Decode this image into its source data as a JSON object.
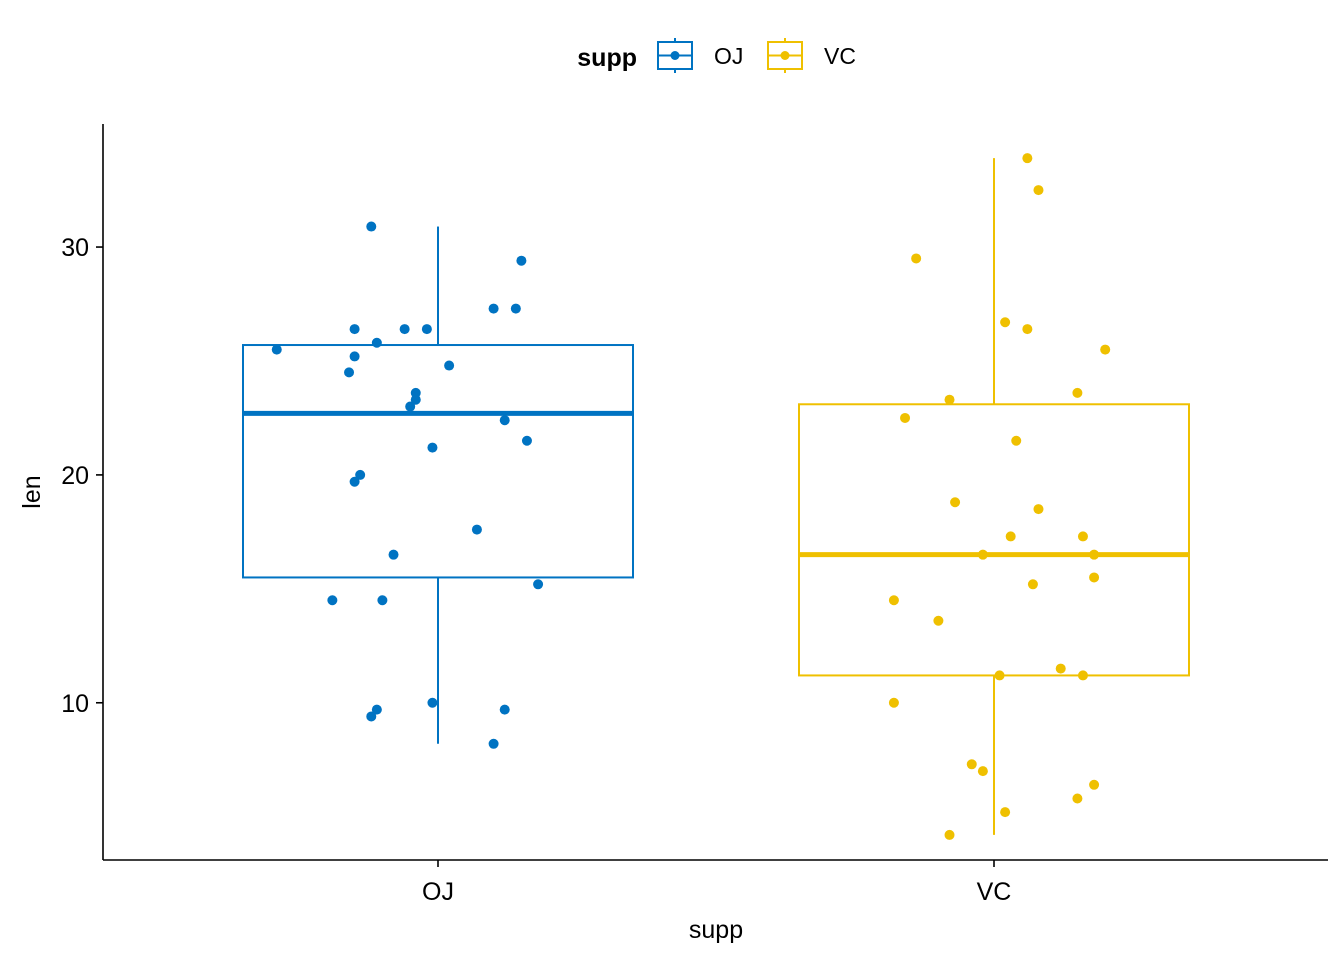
{
  "chart_data": {
    "type": "box",
    "title": "",
    "xlabel": "supp",
    "ylabel": "len",
    "categories": [
      "OJ",
      "VC"
    ],
    "yticks": [
      10,
      20,
      30
    ],
    "ylim": [
      3.1,
      35.4
    ],
    "grid": false,
    "legend": {
      "title": "supp",
      "position": "top",
      "entries": [
        "OJ",
        "VC"
      ]
    },
    "colors": {
      "OJ": "#0073C2",
      "VC": "#EFC000"
    },
    "series": [
      {
        "name": "OJ",
        "box": {
          "whisker_low": 8.2,
          "q1": 15.5,
          "median": 22.7,
          "q3": 25.7,
          "whisker_high": 30.9
        },
        "points": [
          {
            "x": -0.29,
            "y": 25.5
          },
          {
            "x": -0.15,
            "y": 26.4
          },
          {
            "x": -0.11,
            "y": 25.8
          },
          {
            "x": -0.15,
            "y": 25.2
          },
          {
            "x": -0.16,
            "y": 24.5
          },
          {
            "x": -0.12,
            "y": 30.9
          },
          {
            "x": 0.15,
            "y": 29.4
          },
          {
            "x": 0.1,
            "y": 27.3
          },
          {
            "x": 0.14,
            "y": 27.3
          },
          {
            "x": -0.06,
            "y": 26.4
          },
          {
            "x": -0.02,
            "y": 26.4
          },
          {
            "x": 0.02,
            "y": 24.8
          },
          {
            "x": -0.04,
            "y": 23.6
          },
          {
            "x": -0.04,
            "y": 23.3
          },
          {
            "x": -0.05,
            "y": 23.0
          },
          {
            "x": 0.12,
            "y": 22.4
          },
          {
            "x": 0.16,
            "y": 21.5
          },
          {
            "x": -0.01,
            "y": 21.2
          },
          {
            "x": -0.14,
            "y": 20.0
          },
          {
            "x": -0.15,
            "y": 19.7
          },
          {
            "x": 0.07,
            "y": 17.6
          },
          {
            "x": -0.08,
            "y": 16.5
          },
          {
            "x": 0.18,
            "y": 15.2
          },
          {
            "x": -0.19,
            "y": 14.5
          },
          {
            "x": -0.1,
            "y": 14.5
          },
          {
            "x": -0.01,
            "y": 10.0
          },
          {
            "x": -0.11,
            "y": 9.7
          },
          {
            "x": -0.12,
            "y": 9.4
          },
          {
            "x": 0.12,
            "y": 9.7
          },
          {
            "x": 0.1,
            "y": 8.2
          }
        ]
      },
      {
        "name": "VC",
        "box": {
          "whisker_low": 4.2,
          "q1": 11.2,
          "median": 16.5,
          "q3": 23.1,
          "whisker_high": 33.9
        },
        "points": [
          {
            "x": 0.06,
            "y": 33.9
          },
          {
            "x": 0.08,
            "y": 32.5
          },
          {
            "x": -0.14,
            "y": 29.5
          },
          {
            "x": 0.02,
            "y": 26.7
          },
          {
            "x": 0.06,
            "y": 26.4
          },
          {
            "x": 0.2,
            "y": 25.5
          },
          {
            "x": 0.15,
            "y": 23.6
          },
          {
            "x": -0.08,
            "y": 23.3
          },
          {
            "x": -0.16,
            "y": 22.5
          },
          {
            "x": 0.04,
            "y": 21.5
          },
          {
            "x": -0.07,
            "y": 18.8
          },
          {
            "x": 0.08,
            "y": 18.5
          },
          {
            "x": 0.03,
            "y": 17.3
          },
          {
            "x": 0.16,
            "y": 17.3
          },
          {
            "x": -0.02,
            "y": 16.5
          },
          {
            "x": 0.18,
            "y": 16.5
          },
          {
            "x": 0.18,
            "y": 15.5
          },
          {
            "x": 0.07,
            "y": 15.2
          },
          {
            "x": -0.18,
            "y": 14.5
          },
          {
            "x": -0.1,
            "y": 13.6
          },
          {
            "x": 0.12,
            "y": 11.5
          },
          {
            "x": 0.01,
            "y": 11.2
          },
          {
            "x": 0.16,
            "y": 11.2
          },
          {
            "x": -0.18,
            "y": 10.0
          },
          {
            "x": -0.04,
            "y": 7.3
          },
          {
            "x": -0.02,
            "y": 7.0
          },
          {
            "x": 0.18,
            "y": 6.4
          },
          {
            "x": 0.15,
            "y": 5.8
          },
          {
            "x": 0.02,
            "y": 5.2
          },
          {
            "x": -0.08,
            "y": 4.2
          }
        ]
      }
    ]
  }
}
